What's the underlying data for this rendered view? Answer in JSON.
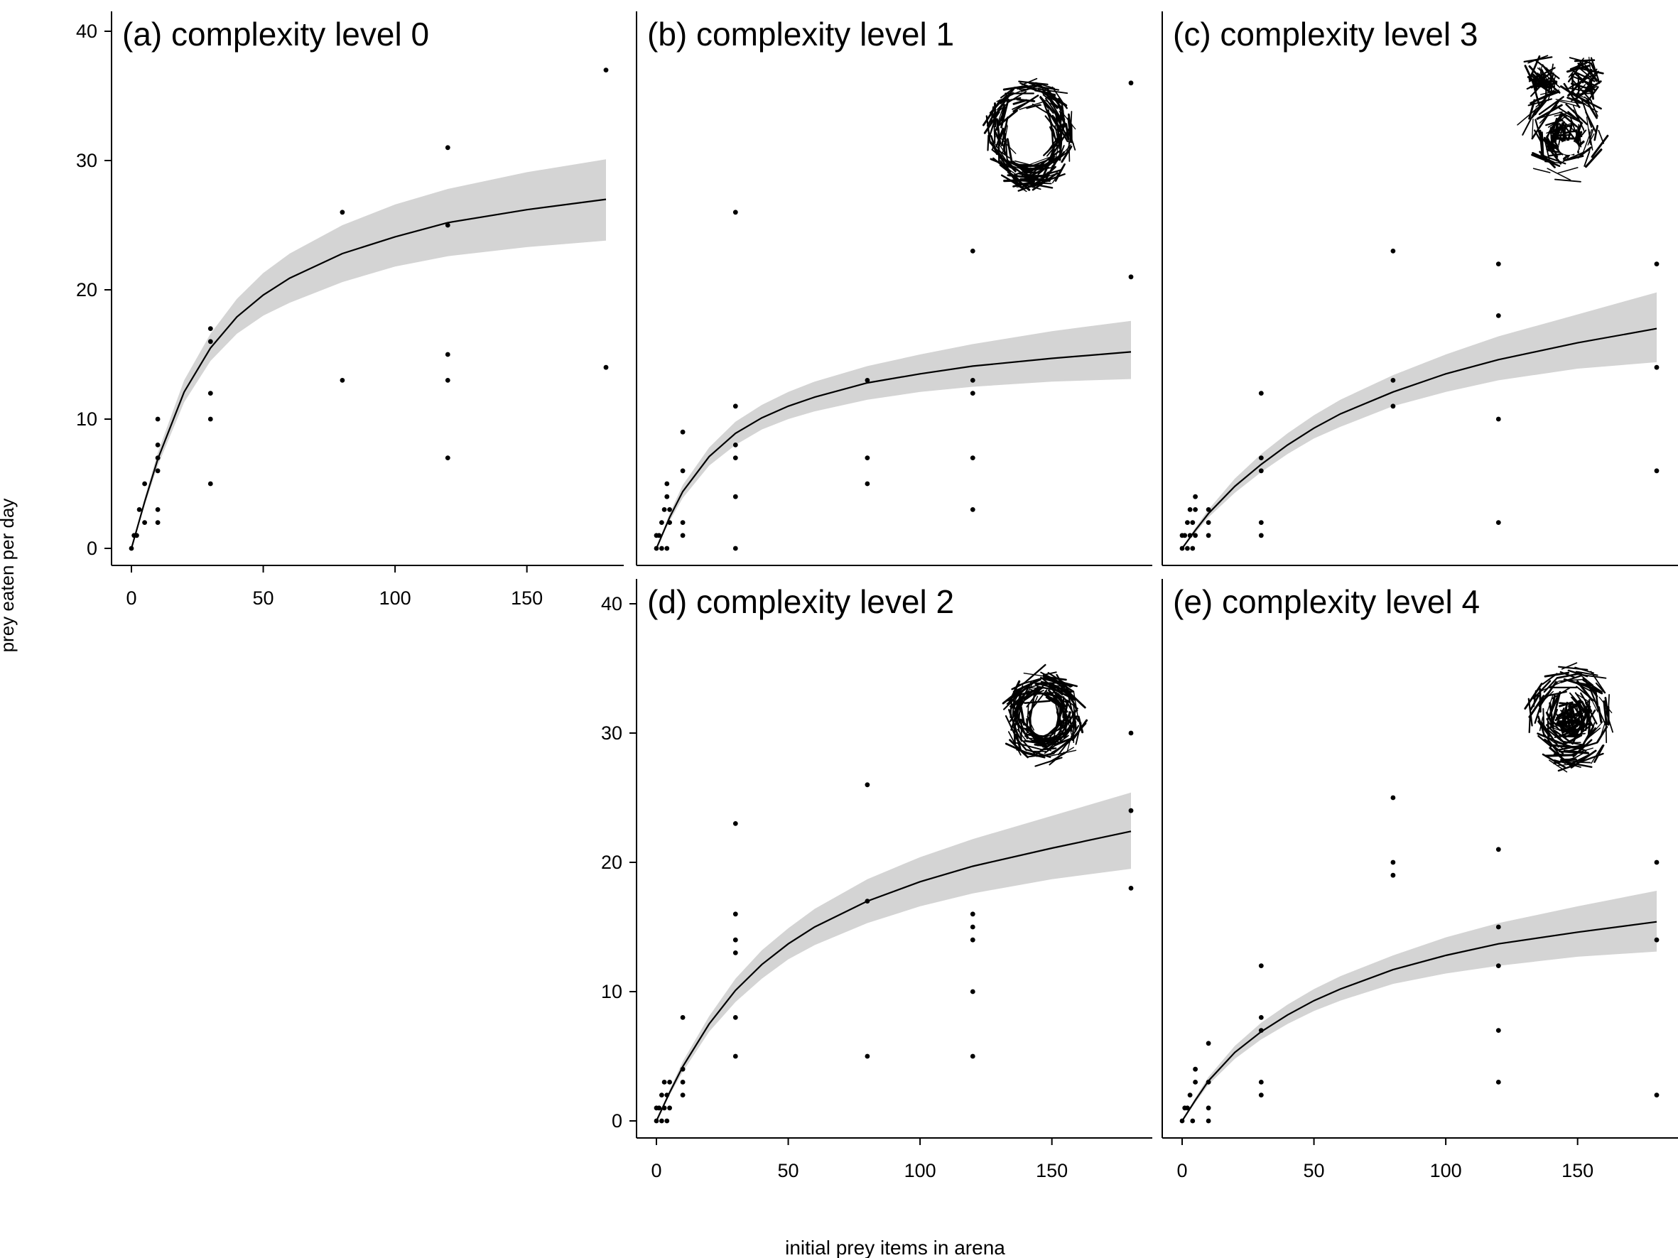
{
  "figure": {
    "ylabel": "prey eaten per day",
    "xlabel": "initial prey items in arena"
  },
  "colors": {
    "band": "#d4d4d4",
    "curve": "#000000",
    "point": "#000000",
    "axis": "#000000"
  },
  "chart_data": [
    {
      "type": "scatter",
      "title": "(a) complexity level 0",
      "xlim": [
        0,
        180
      ],
      "ylim": [
        0,
        40
      ],
      "x_ticks": [
        0,
        50,
        100,
        150
      ],
      "y_ticks": [
        0,
        10,
        20,
        30,
        40
      ],
      "show_x_ticks": true,
      "show_y_ticks": true,
      "habitat_icon": "",
      "points": [
        [
          0,
          0
        ],
        [
          1,
          1
        ],
        [
          2,
          1
        ],
        [
          3,
          3
        ],
        [
          5,
          5
        ],
        [
          5,
          2
        ],
        [
          10,
          10
        ],
        [
          10,
          8
        ],
        [
          10,
          7
        ],
        [
          10,
          6
        ],
        [
          10,
          3
        ],
        [
          10,
          2
        ],
        [
          30,
          17
        ],
        [
          30,
          16
        ],
        [
          30,
          12
        ],
        [
          30,
          10
        ],
        [
          30,
          5
        ],
        [
          80,
          26
        ],
        [
          80,
          13
        ],
        [
          120,
          31
        ],
        [
          120,
          25
        ],
        [
          120,
          15
        ],
        [
          120,
          13
        ],
        [
          120,
          7
        ],
        [
          180,
          37
        ],
        [
          180,
          14
        ]
      ],
      "fit": {
        "x": [
          0,
          5,
          10,
          20,
          30,
          40,
          50,
          60,
          80,
          100,
          120,
          150,
          180
        ],
        "y": [
          0,
          3.6,
          6.9,
          12.1,
          15.5,
          17.9,
          19.6,
          20.9,
          22.8,
          24.1,
          25.2,
          26.2,
          27.0
        ],
        "lower": [
          0,
          3.3,
          6.4,
          11.3,
          14.5,
          16.6,
          18.0,
          19.0,
          20.6,
          21.8,
          22.6,
          23.3,
          23.8
        ],
        "upper": [
          0,
          3.9,
          7.4,
          13.0,
          16.6,
          19.3,
          21.3,
          22.8,
          25.0,
          26.6,
          27.8,
          29.1,
          30.1
        ]
      }
    },
    {
      "type": "scatter",
      "title": "(b) complexity level 1",
      "xlim": [
        0,
        180
      ],
      "ylim": [
        0,
        40
      ],
      "x_ticks": [
        0,
        50,
        100,
        150
      ],
      "y_ticks": [
        0,
        10,
        20,
        30,
        40
      ],
      "show_x_ticks": false,
      "show_y_ticks": false,
      "habitat_icon": "ring-habitat-icon",
      "points": [
        [
          0,
          1
        ],
        [
          0,
          0
        ],
        [
          1,
          1
        ],
        [
          2,
          0
        ],
        [
          2,
          2
        ],
        [
          3,
          3
        ],
        [
          4,
          0
        ],
        [
          4,
          4
        ],
        [
          4,
          5
        ],
        [
          5,
          3
        ],
        [
          5,
          2
        ],
        [
          10,
          9
        ],
        [
          10,
          6
        ],
        [
          10,
          2
        ],
        [
          10,
          1
        ],
        [
          30,
          26
        ],
        [
          30,
          11
        ],
        [
          30,
          8
        ],
        [
          30,
          7
        ],
        [
          30,
          4
        ],
        [
          30,
          0
        ],
        [
          80,
          13
        ],
        [
          80,
          7
        ],
        [
          80,
          5
        ],
        [
          120,
          23
        ],
        [
          120,
          13
        ],
        [
          120,
          12
        ],
        [
          120,
          7
        ],
        [
          120,
          3
        ],
        [
          180,
          36
        ],
        [
          180,
          21
        ]
      ],
      "fit": {
        "x": [
          0,
          5,
          10,
          20,
          30,
          40,
          50,
          60,
          80,
          100,
          120,
          150,
          180
        ],
        "y": [
          0,
          2.4,
          4.4,
          7.1,
          8.9,
          10.1,
          11.0,
          11.7,
          12.8,
          13.5,
          14.1,
          14.7,
          15.2
        ],
        "lower": [
          0,
          2.1,
          3.9,
          6.4,
          8.0,
          9.2,
          10.0,
          10.6,
          11.5,
          12.1,
          12.5,
          12.9,
          13.1
        ],
        "upper": [
          0,
          2.7,
          4.9,
          7.8,
          9.8,
          11.1,
          12.1,
          12.9,
          14.1,
          15.0,
          15.8,
          16.8,
          17.6
        ]
      }
    },
    {
      "type": "scatter",
      "title": "(c) complexity level 3",
      "xlim": [
        0,
        180
      ],
      "ylim": [
        0,
        40
      ],
      "x_ticks": [
        0,
        50,
        100,
        150
      ],
      "y_ticks": [
        0,
        10,
        20,
        30,
        40
      ],
      "show_x_ticks": false,
      "show_y_ticks": false,
      "habitat_icon": "dense-habitat-icon",
      "points": [
        [
          0,
          1
        ],
        [
          0,
          0
        ],
        [
          1,
          1
        ],
        [
          2,
          0
        ],
        [
          2,
          2
        ],
        [
          3,
          3
        ],
        [
          3,
          1
        ],
        [
          4,
          0
        ],
        [
          4,
          2
        ],
        [
          5,
          4
        ],
        [
          5,
          3
        ],
        [
          5,
          1
        ],
        [
          10,
          3
        ],
        [
          10,
          2
        ],
        [
          10,
          1
        ],
        [
          30,
          12
        ],
        [
          30,
          7
        ],
        [
          30,
          6
        ],
        [
          30,
          2
        ],
        [
          30,
          1
        ],
        [
          80,
          23
        ],
        [
          80,
          13
        ],
        [
          80,
          11
        ],
        [
          120,
          22
        ],
        [
          120,
          18
        ],
        [
          120,
          10
        ],
        [
          120,
          2
        ],
        [
          180,
          22
        ],
        [
          180,
          14
        ],
        [
          180,
          6
        ]
      ],
      "fit": {
        "x": [
          0,
          5,
          10,
          20,
          30,
          40,
          50,
          60,
          80,
          100,
          120,
          150,
          180
        ],
        "y": [
          0,
          1.4,
          2.7,
          4.8,
          6.5,
          8.0,
          9.3,
          10.4,
          12.1,
          13.5,
          14.6,
          15.9,
          17.0
        ],
        "lower": [
          0,
          1.2,
          2.4,
          4.3,
          5.9,
          7.3,
          8.5,
          9.4,
          11.0,
          12.1,
          13.0,
          13.9,
          14.4
        ],
        "upper": [
          0,
          1.6,
          3.0,
          5.4,
          7.3,
          8.9,
          10.3,
          11.5,
          13.4,
          15.0,
          16.4,
          18.1,
          19.8
        ]
      }
    },
    {
      "type": "scatter",
      "title": "(d) complexity level 2",
      "xlim": [
        0,
        180
      ],
      "ylim": [
        0,
        40
      ],
      "x_ticks": [
        0,
        50,
        100,
        150
      ],
      "y_ticks": [
        0,
        10,
        20,
        30,
        40
      ],
      "show_x_ticks": true,
      "show_y_ticks": true,
      "habitat_icon": "double-ring-habitat-icon",
      "points": [
        [
          0,
          1
        ],
        [
          0,
          0
        ],
        [
          1,
          1
        ],
        [
          2,
          0
        ],
        [
          2,
          2
        ],
        [
          3,
          3
        ],
        [
          3,
          1
        ],
        [
          4,
          0
        ],
        [
          4,
          2
        ],
        [
          5,
          3
        ],
        [
          5,
          1
        ],
        [
          10,
          8
        ],
        [
          10,
          4
        ],
        [
          10,
          3
        ],
        [
          10,
          2
        ],
        [
          30,
          23
        ],
        [
          30,
          16
        ],
        [
          30,
          14
        ],
        [
          30,
          13
        ],
        [
          30,
          8
        ],
        [
          30,
          5
        ],
        [
          80,
          26
        ],
        [
          80,
          17
        ],
        [
          80,
          5
        ],
        [
          120,
          16
        ],
        [
          120,
          15
        ],
        [
          120,
          14
        ],
        [
          120,
          10
        ],
        [
          120,
          5
        ],
        [
          180,
          30
        ],
        [
          180,
          24
        ],
        [
          180,
          18
        ]
      ],
      "fit": {
        "x": [
          0,
          5,
          10,
          20,
          30,
          40,
          50,
          60,
          80,
          100,
          120,
          150,
          180
        ],
        "y": [
          0,
          2.2,
          4.2,
          7.5,
          10.1,
          12.1,
          13.7,
          15.0,
          17.0,
          18.5,
          19.7,
          21.1,
          22.4
        ],
        "lower": [
          0,
          2.0,
          3.8,
          6.9,
          9.2,
          11.0,
          12.5,
          13.6,
          15.3,
          16.6,
          17.6,
          18.7,
          19.5
        ],
        "upper": [
          0,
          2.4,
          4.6,
          8.1,
          11.0,
          13.2,
          14.9,
          16.4,
          18.7,
          20.4,
          21.8,
          23.6,
          25.4
        ]
      }
    },
    {
      "type": "scatter",
      "title": "(e) complexity level 4",
      "xlim": [
        0,
        180
      ],
      "ylim": [
        0,
        40
      ],
      "x_ticks": [
        0,
        50,
        100,
        150
      ],
      "y_ticks": [
        0,
        10,
        20,
        30,
        40
      ],
      "show_x_ticks": true,
      "show_y_ticks": false,
      "habitat_icon": "full-habitat-icon",
      "points": [
        [
          0,
          0
        ],
        [
          1,
          1
        ],
        [
          2,
          1
        ],
        [
          3,
          2
        ],
        [
          4,
          0
        ],
        [
          5,
          4
        ],
        [
          5,
          3
        ],
        [
          10,
          6
        ],
        [
          10,
          3
        ],
        [
          10,
          1
        ],
        [
          10,
          0
        ],
        [
          30,
          12
        ],
        [
          30,
          8
        ],
        [
          30,
          7
        ],
        [
          30,
          3
        ],
        [
          30,
          2
        ],
        [
          80,
          25
        ],
        [
          80,
          20
        ],
        [
          80,
          19
        ],
        [
          120,
          21
        ],
        [
          120,
          15
        ],
        [
          120,
          12
        ],
        [
          120,
          7
        ],
        [
          120,
          3
        ],
        [
          180,
          20
        ],
        [
          180,
          14
        ],
        [
          180,
          2
        ]
      ],
      "fit": {
        "x": [
          0,
          5,
          10,
          20,
          30,
          40,
          50,
          60,
          80,
          100,
          120,
          150,
          180
        ],
        "y": [
          0,
          1.6,
          3.1,
          5.3,
          6.9,
          8.2,
          9.3,
          10.2,
          11.7,
          12.8,
          13.7,
          14.6,
          15.4
        ],
        "lower": [
          0,
          1.4,
          2.8,
          4.8,
          6.3,
          7.5,
          8.5,
          9.3,
          10.6,
          11.4,
          12.0,
          12.7,
          13.1
        ],
        "upper": [
          0,
          1.8,
          3.4,
          5.8,
          7.6,
          9.0,
          10.2,
          11.2,
          12.8,
          14.2,
          15.3,
          16.6,
          17.8
        ]
      }
    }
  ]
}
